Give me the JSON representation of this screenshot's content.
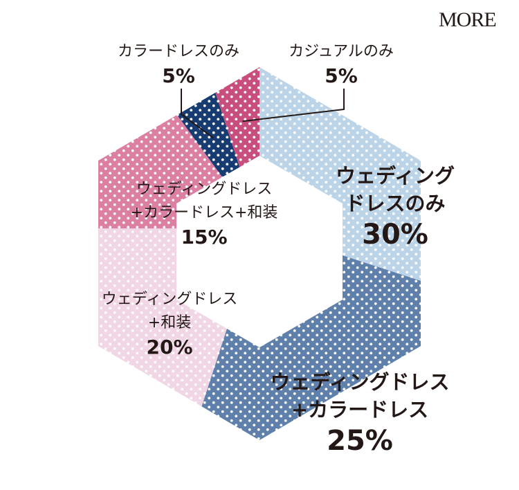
{
  "logo": "MORE",
  "colors": {
    "background": "#ffffff",
    "text": "#231815",
    "dot": "#ffffff"
  },
  "chart_data": {
    "type": "pie",
    "shape": "hexagonal donut",
    "title": "",
    "slices": [
      {
        "name": "ウェディングドレスのみ",
        "name_lines": [
          "ウェディング",
          "ドレスのみ"
        ],
        "value": 30,
        "label": "30%",
        "color": "#bcd4e8"
      },
      {
        "name": "ウェディングドレス+カラードレス",
        "name_lines": [
          "ウェディングドレス",
          "+カラードレス"
        ],
        "value": 25,
        "label": "25%",
        "color": "#5e80ab"
      },
      {
        "name": "ウェディングドレス+和装",
        "name_lines": [
          "ウェディングドレス",
          "+和装"
        ],
        "value": 20,
        "label": "20%",
        "color": "#f1d6e6"
      },
      {
        "name": "ウェディングドレス+カラードレス+和装",
        "name_lines": [
          "ウェディングドレス",
          "+カラードレス+和装"
        ],
        "value": 15,
        "label": "15%",
        "color": "#db7fa3"
      },
      {
        "name": "カラードレスのみ",
        "name_lines": [
          "カラードレスのみ"
        ],
        "value": 5,
        "label": "5%",
        "color": "#173c72"
      },
      {
        "name": "カジュアルのみ",
        "name_lines": [
          "カジュアルのみ"
        ],
        "value": 5,
        "label": "5%",
        "color": "#c84f7d"
      }
    ]
  }
}
